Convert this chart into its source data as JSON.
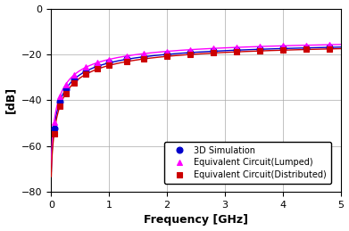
{
  "title": "",
  "xlabel": "Frequency [GHz]",
  "ylabel": "[dB]",
  "xlim": [
    0,
    5
  ],
  "ylim": [
    -80,
    0
  ],
  "yticks": [
    0,
    -20,
    -40,
    -60,
    -80
  ],
  "xticks": [
    0,
    1,
    2,
    3,
    4,
    5
  ],
  "grid": true,
  "series": [
    {
      "label": "3D Simulation",
      "color": "#0000cc",
      "marker": "o",
      "markersize": 5,
      "linewidth": 1.0,
      "linestyle": "-",
      "markerfacecolor": "#0000cc"
    },
    {
      "label": "Equivalent Circuit(Lumped)",
      "color": "#ff00ff",
      "marker": "^",
      "markersize": 5,
      "linewidth": 1.0,
      "linestyle": "-",
      "markerfacecolor": "#ff00ff"
    },
    {
      "label": "Equivalent Circuit(Distributed)",
      "color": "#cc0000",
      "marker": "s",
      "markersize": 4,
      "linewidth": 1.0,
      "linestyle": "-",
      "markerfacecolor": "#cc0000"
    }
  ],
  "curve_params": {
    "sim": {
      "a": -13.0,
      "b": 60.0,
      "c": 0.12,
      "d": 0.72
    },
    "lumped": {
      "a": -12.0,
      "b": 59.0,
      "c": 0.11,
      "d": 0.71
    },
    "dist": {
      "a": -13.5,
      "b": 61.5,
      "c": 0.13,
      "d": 0.73
    }
  },
  "marker_freqs": [
    0.05,
    0.15,
    0.25,
    0.4,
    0.6,
    0.8,
    1.0,
    1.3,
    1.6,
    2.0,
    2.4,
    2.8,
    3.2,
    3.6,
    4.0,
    4.4,
    4.8
  ],
  "background_color": "#ffffff",
  "legend_fontsize": 7,
  "axis_label_fontsize": 9,
  "tick_fontsize": 8
}
